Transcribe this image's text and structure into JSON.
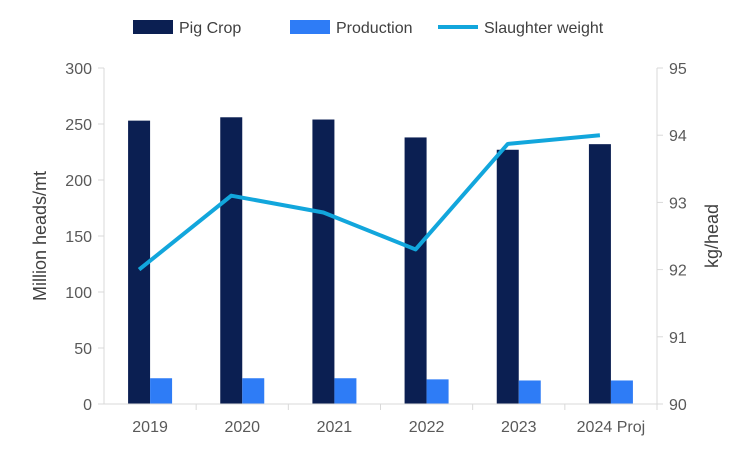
{
  "chart_data": {
    "type": "bar",
    "categories": [
      "2019",
      "2020",
      "2021",
      "2022",
      "2023",
      "2024 Proj"
    ],
    "series": [
      {
        "name": "Pig Crop",
        "kind": "bar",
        "axis": "left",
        "color": "#0b1f52",
        "values": [
          253,
          256,
          254,
          238,
          227,
          232
        ]
      },
      {
        "name": "Production",
        "kind": "bar",
        "axis": "left",
        "color": "#2e7cf6",
        "values": [
          23,
          23,
          23,
          22,
          21,
          21
        ]
      },
      {
        "name": "Slaughter weight",
        "kind": "line",
        "axis": "right",
        "color": "#12a6dc",
        "values": [
          92.0,
          93.1,
          92.85,
          92.3,
          93.87,
          94.0
        ]
      }
    ],
    "ylabel": "Million heads/mt",
    "y2label": "kg/head",
    "ylim": [
      0,
      300
    ],
    "y2lim": [
      90,
      95
    ],
    "yticks": [
      "0",
      "50",
      "100",
      "150",
      "200",
      "250",
      "300"
    ],
    "y2ticks": [
      "90",
      "91",
      "92",
      "93",
      "94",
      "95"
    ],
    "grid": false,
    "legend_position": "top"
  }
}
